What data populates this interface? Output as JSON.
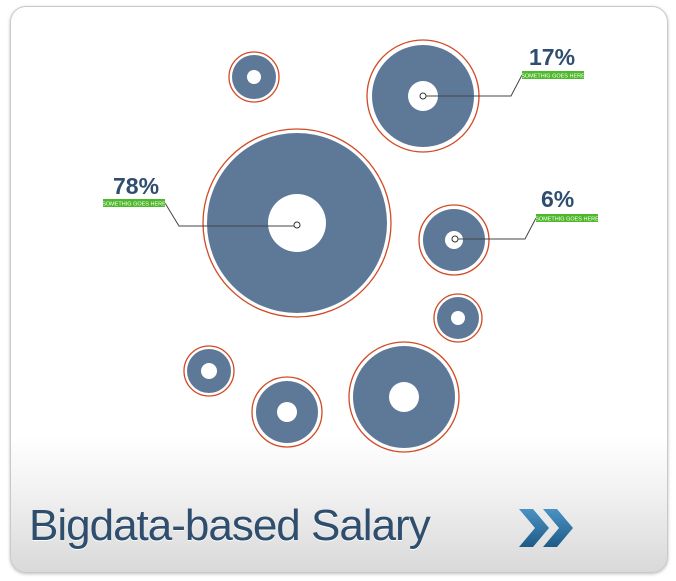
{
  "card": {
    "title": "Bigdata-based Salary",
    "next_icon": "double-chevron-right-icon"
  },
  "colors": {
    "bubble_fill": "#5e7898",
    "ring_stroke": "#d14a24",
    "callout_bg": "#4cb82a",
    "percent_text": "#2f4e6e",
    "title_text": "#2f4e6e",
    "chevron": "#2b6f9e"
  },
  "callouts": [
    {
      "value": "78%",
      "label": "SOMETHIG GOES HERE"
    },
    {
      "value": "17%",
      "label": "SOMETHIG GOES HERE"
    },
    {
      "value": "6%",
      "label": "SOMETHIG GOES HERE"
    }
  ]
}
